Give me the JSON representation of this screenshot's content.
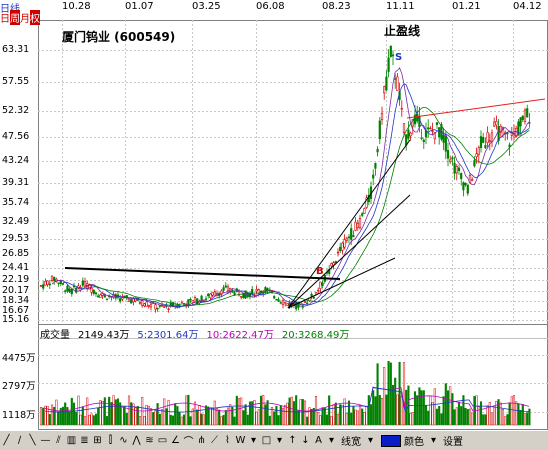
{
  "period": {
    "label": "日线",
    "tabs": [
      "日",
      "周",
      "月",
      "权"
    ]
  },
  "dates": [
    "10.28",
    "01.07",
    "03.25",
    "06.08",
    "08.23",
    "11.11",
    "01.21",
    "04.12"
  ],
  "stock_title": "厦门钨业 (600549)",
  "annotations": {
    "profit_line": "止盈线",
    "sell_mark": "S",
    "buy_mark": "B"
  },
  "price_axis": [
    "63.31",
    "57.55",
    "52.32",
    "47.56",
    "43.24",
    "39.31",
    "35.74",
    "32.49",
    "29.53",
    "26.85",
    "24.41",
    "22.19",
    "20.17",
    "18.34",
    "16.67",
    "15.16"
  ],
  "volume_legend": {
    "label": "成交量",
    "total": "2149.43万",
    "ma5": "5:2301.64万",
    "ma10": "10:2622.47万",
    "ma20": "20:3268.49万"
  },
  "volume_axis": [
    "4475万",
    "2797万",
    "1118万"
  ],
  "toolbar": {
    "line_width": "线宽",
    "color": "颜色",
    "settings": "设置"
  },
  "colors": {
    "up": "#d40000",
    "down": "#008000",
    "ma5": "#7b2aa8",
    "ma10": "#1d39c4",
    "ma20": "#008000",
    "ma_vol": "#c000c0",
    "resistance": "#e02020",
    "trend": "#000000",
    "selected_color": "#0a1cc8"
  },
  "chart_data": {
    "type": "line",
    "series": [
      {
        "name": "price",
        "x": [
          "10.28",
          "01.07",
          "03.25",
          "06.08",
          "08.23",
          "11.11",
          "01.21",
          "04.12"
        ],
        "values": [
          21.5,
          19.5,
          18.0,
          19.5,
          21.5,
          60.0,
          43.0,
          53.0
        ]
      }
    ]
  }
}
